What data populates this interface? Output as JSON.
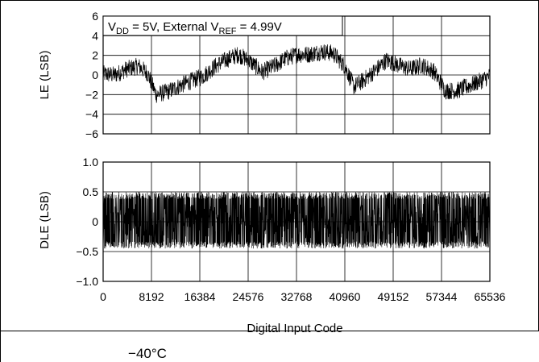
{
  "figure": {
    "xlabel": "Digital Input Code",
    "footnote": "−40°C",
    "x_ticks": [
      "0",
      "8192",
      "16384",
      "24576",
      "32768",
      "40960",
      "49152",
      "57344",
      "65536"
    ]
  },
  "chart_data": [
    {
      "type": "line",
      "title": "",
      "ylabel": "LE (LSB)",
      "xlabel": "Digital Input Code",
      "xlim": [
        0,
        65536
      ],
      "ylim": [
        -6,
        6
      ],
      "y_ticks": [
        "6",
        "4",
        "2",
        "0",
        "−2",
        "−4",
        "−6"
      ],
      "grid": true,
      "annotation": {
        "vdd_prefix": "V",
        "vdd_sub": "DD",
        "mid_text": " = 5V, External V",
        "ref_sub": "REF",
        "value_text": " = 4.99V"
      },
      "envelope_x": [
        0,
        2000,
        4000,
        6000,
        7500,
        9000,
        11000,
        13000,
        15000,
        17000,
        19000,
        21000,
        23000,
        25000,
        27000,
        29000,
        31000,
        33000,
        35000,
        37000,
        39000,
        40960,
        42500,
        44000,
        46000,
        48000,
        50000,
        52000,
        54000,
        56000,
        58000,
        60000,
        62000,
        64000,
        65536
      ],
      "envelope_center": [
        0.1,
        0.0,
        0.6,
        0.9,
        0.2,
        -2.0,
        -1.7,
        -1.1,
        -0.6,
        -0.1,
        0.9,
        1.6,
        2.1,
        1.3,
        0.3,
        0.9,
        1.7,
        2.1,
        2.1,
        2.4,
        2.2,
        0.9,
        -1.2,
        -0.6,
        0.4,
        1.5,
        1.0,
        0.6,
        1.0,
        0.4,
        -1.6,
        -1.6,
        -1.1,
        -0.6,
        -0.1
      ],
      "envelope_halfwidth": 0.9
    },
    {
      "type": "line",
      "title": "",
      "ylabel": "DLE (LSB)",
      "xlabel": "Digital Input Code",
      "xlim": [
        0,
        65536
      ],
      "ylim": [
        -1.0,
        1.0
      ],
      "y_ticks": [
        "1.0",
        "0.5",
        "0",
        "−0.5",
        "−1.0"
      ],
      "grid": true,
      "band_upper": 0.5,
      "band_lower": -0.45,
      "band_center": 0.0
    }
  ]
}
